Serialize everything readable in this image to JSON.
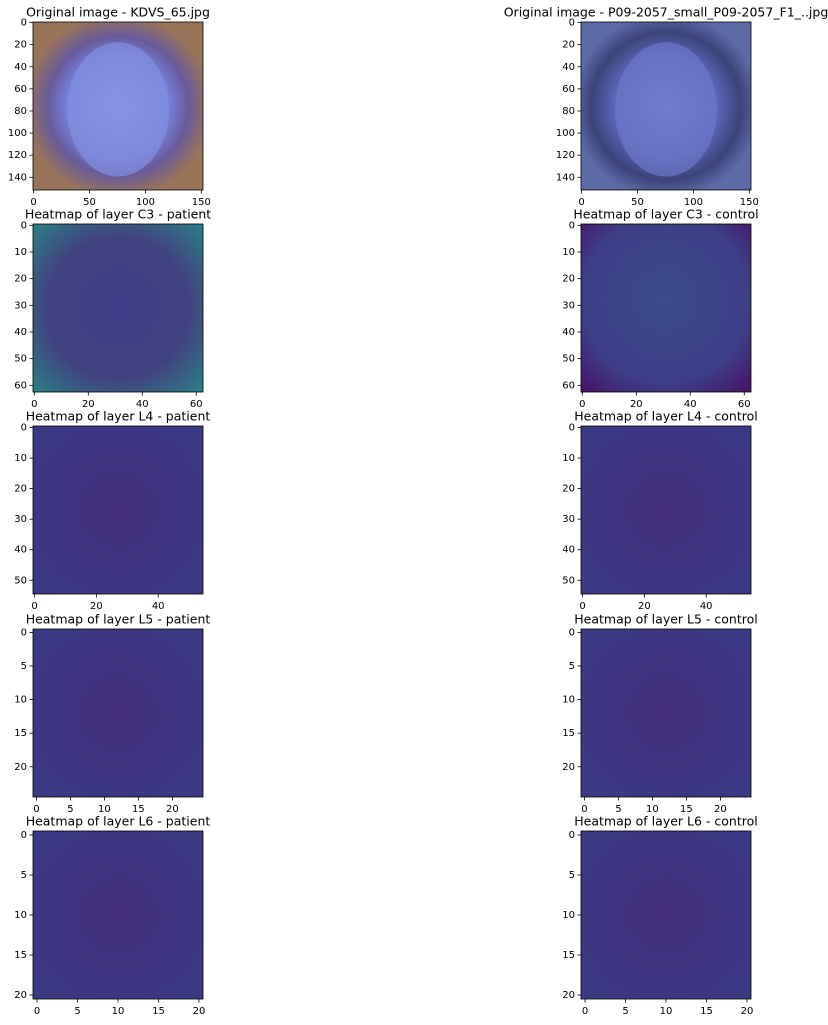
{
  "panels": [
    {
      "title": "Original image - KDVS_65.jpg",
      "xlim": [
        -0.5,
        151.5
      ],
      "ylim": [
        151.5,
        -0.5
      ],
      "xticks": [
        0,
        50,
        100,
        150
      ],
      "yticks": [
        0,
        20,
        40,
        60,
        80,
        100,
        120,
        140
      ]
    },
    {
      "title": "Original image - P09-2057_small_P09-2057_F1_..jpg",
      "xlim": [
        -0.5,
        151.5
      ],
      "ylim": [
        151.5,
        -0.5
      ],
      "xticks": [
        0,
        50,
        100,
        150
      ],
      "yticks": [
        0,
        20,
        40,
        60,
        80,
        100,
        120,
        140
      ]
    },
    {
      "title": "Heatmap of layer C3 - patient",
      "xlim": [
        -0.5,
        62.5
      ],
      "ylim": [
        62.5,
        -0.5
      ],
      "xticks": [
        0,
        20,
        40,
        60
      ],
      "yticks": [
        0,
        10,
        20,
        30,
        40,
        50,
        60
      ]
    },
    {
      "title": "Heatmap of layer C3 - control",
      "xlim": [
        -0.5,
        62.5
      ],
      "ylim": [
        62.5,
        -0.5
      ],
      "xticks": [
        0,
        20,
        40,
        60
      ],
      "yticks": [
        0,
        10,
        20,
        30,
        40,
        50,
        60
      ]
    },
    {
      "title": "Heatmap of layer L4 - patient",
      "xlim": [
        -0.5,
        54.5
      ],
      "ylim": [
        54.5,
        -0.5
      ],
      "xticks": [
        0,
        20,
        40
      ],
      "yticks": [
        0,
        10,
        20,
        30,
        40,
        50
      ]
    },
    {
      "title": "Heatmap of layer L4 - control",
      "xlim": [
        -0.5,
        54.5
      ],
      "ylim": [
        54.5,
        -0.5
      ],
      "xticks": [
        0,
        20,
        40
      ],
      "yticks": [
        0,
        10,
        20,
        30,
        40,
        50
      ]
    },
    {
      "title": "Heatmap of layer L5 - patient",
      "xlim": [
        -0.5,
        24.5
      ],
      "ylim": [
        24.5,
        -0.5
      ],
      "xticks": [
        0,
        5,
        10,
        15,
        20
      ],
      "yticks": [
        0,
        5,
        10,
        15,
        20
      ]
    },
    {
      "title": "Heatmap of layer L5 - control",
      "xlim": [
        -0.5,
        24.5
      ],
      "ylim": [
        24.5,
        -0.5
      ],
      "xticks": [
        0,
        5,
        10,
        15,
        20
      ],
      "yticks": [
        0,
        5,
        10,
        15,
        20
      ]
    },
    {
      "title": "Heatmap of layer L6 - patient",
      "xlim": [
        -0.5,
        20.5
      ],
      "ylim": [
        20.5,
        -0.5
      ],
      "xticks": [
        0,
        5,
        10,
        15,
        20
      ],
      "yticks": [
        0,
        5,
        10,
        15,
        20
      ]
    },
    {
      "title": "Heatmap of layer L6 - control",
      "xlim": [
        -0.5,
        20.5
      ],
      "ylim": [
        20.5,
        -0.5
      ],
      "xticks": [
        0,
        5,
        10,
        15,
        20
      ],
      "yticks": [
        0,
        5,
        10,
        15,
        20
      ]
    }
  ]
}
